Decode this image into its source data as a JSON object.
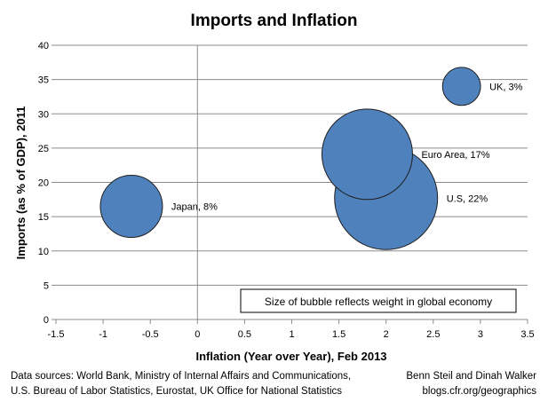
{
  "chart_data": {
    "type": "scatter",
    "title": "Imports and Inflation",
    "xlabel": "Inflation (Year over Year), Feb 2013",
    "ylabel": "Imports (as % of GDP), 2011",
    "xlim": [
      -1.5,
      3.5
    ],
    "ylim": [
      0,
      40
    ],
    "xticks": [
      "-1.5",
      "-1",
      "-0.5",
      "0",
      "0.5",
      "1",
      "1.5",
      "2",
      "2.5",
      "3",
      "3.5"
    ],
    "yticks": [
      "0",
      "5",
      "10",
      "15",
      "20",
      "25",
      "30",
      "35",
      "40"
    ],
    "grid": "horizontal",
    "bubble_color": "#4f81bd",
    "points": [
      {
        "label": "Japan, 8%",
        "x": -0.7,
        "y": 16.5,
        "weight": 8
      },
      {
        "label": "U.S, 22%",
        "x": 2.0,
        "y": 17.7,
        "weight": 22
      },
      {
        "label": "Euro Area, 17%",
        "x": 1.8,
        "y": 24.1,
        "weight": 17
      },
      {
        "label": "UK, 3%",
        "x": 2.8,
        "y": 34.0,
        "weight": 3
      }
    ],
    "annotation": "Size of bubble reflects weight in global economy"
  },
  "footer": {
    "sources_line1": "Data sources: World Bank, Ministry of Internal Affairs and Communications,",
    "sources_line2": "U.S. Bureau of Labor Statistics, Eurostat, UK Office for National Statistics",
    "credit_line1": "Benn Steil and Dinah Walker",
    "credit_line2": "blogs.cfr.org/geographics"
  }
}
